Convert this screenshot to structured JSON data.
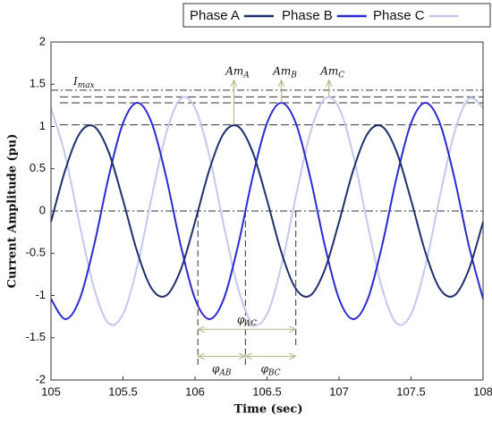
{
  "chart_data": {
    "type": "line",
    "x_label": "Time (sec)",
    "y_label": "Current Amplitude (pu)",
    "x": [
      105,
      105.1,
      105.2,
      105.3,
      105.4,
      105.5,
      105.6,
      105.7,
      105.8,
      105.9,
      106,
      106.1,
      106.2,
      106.3,
      106.4,
      106.5,
      106.6,
      106.7,
      106.8,
      106.9,
      107,
      107.1,
      107.2,
      107.3,
      107.4,
      107.5,
      107.6,
      107.7,
      107.8,
      107.9,
      108
    ],
    "series": [
      {
        "name": "Phase A",
        "color": "#1f2f6e",
        "values": [
          -0.13,
          0.49,
          0.92,
          1.0,
          0.7,
          0.13,
          -0.49,
          -0.92,
          -1.0,
          -0.7,
          -0.13,
          0.49,
          0.92,
          1.0,
          0.7,
          0.13,
          -0.49,
          -0.92,
          -1.0,
          -0.7,
          -0.13,
          0.49,
          0.92,
          1.0,
          0.7,
          0.13,
          -0.49,
          -0.92,
          -1.0,
          -0.7,
          -0.13
        ]
      },
      {
        "name": "Phase B",
        "color": "#2a2ad0",
        "values": [
          -1.04,
          -1.28,
          -1.04,
          -0.4,
          0.4,
          1.04,
          1.28,
          1.04,
          0.4,
          -0.4,
          -1.04,
          -1.28,
          -1.04,
          -0.4,
          0.4,
          1.04,
          1.28,
          1.04,
          0.4,
          -0.4,
          -1.04,
          -1.28,
          -1.04,
          -0.4,
          0.4,
          1.04,
          1.28,
          1.04,
          0.4,
          -0.4,
          -1.04
        ]
      },
      {
        "name": "Phase C",
        "color": "#c5c8ec",
        "values": [
          1.22,
          0.65,
          -0.17,
          -0.92,
          -1.33,
          -1.22,
          -0.65,
          0.17,
          0.92,
          1.33,
          1.22,
          0.65,
          -0.17,
          -0.92,
          -1.33,
          -1.22,
          -0.65,
          0.17,
          0.92,
          1.33,
          1.22,
          0.65,
          -0.17,
          -0.92,
          -1.33,
          -1.22,
          -0.65,
          0.17,
          0.92,
          1.33,
          1.22
        ]
      }
    ],
    "xlim": [
      105,
      108
    ],
    "xticks": [
      105,
      105.5,
      106,
      106.5,
      107,
      107.5,
      108
    ],
    "ylim": [
      -2,
      2
    ],
    "yticks": [
      -2,
      -1.5,
      -1,
      -0.5,
      0,
      0.5,
      1,
      1.5,
      2
    ],
    "legend": "top-right",
    "annotations": {
      "imax": {
        "text": "I",
        "sub": "max",
        "y": 1.43
      },
      "levels": [
        1.35,
        1.28,
        1.02,
        0
      ],
      "amplitudes": [
        {
          "text": "Am",
          "sub": "A",
          "x": 106.27,
          "y": 1.02
        },
        {
          "text": "Am",
          "sub": "B",
          "x": 106.6,
          "y": 1.28
        },
        {
          "text": "Am",
          "sub": "C",
          "x": 106.93,
          "y": 1.35
        }
      ],
      "arrow_top": 1.55,
      "phase_lines": [
        106.02,
        106.35,
        106.7
      ],
      "phase_line_bottom": -1.85,
      "phases": [
        {
          "text": "φ",
          "sub": "AB",
          "from": 106.02,
          "to": 106.35,
          "y": -1.72
        },
        {
          "text": "φ",
          "sub": "AC",
          "from": 106.02,
          "to": 106.7,
          "y": -1.4
        },
        {
          "text": "φ",
          "sub": "BC",
          "from": 106.35,
          "to": 106.7,
          "y": -1.72
        }
      ]
    }
  }
}
